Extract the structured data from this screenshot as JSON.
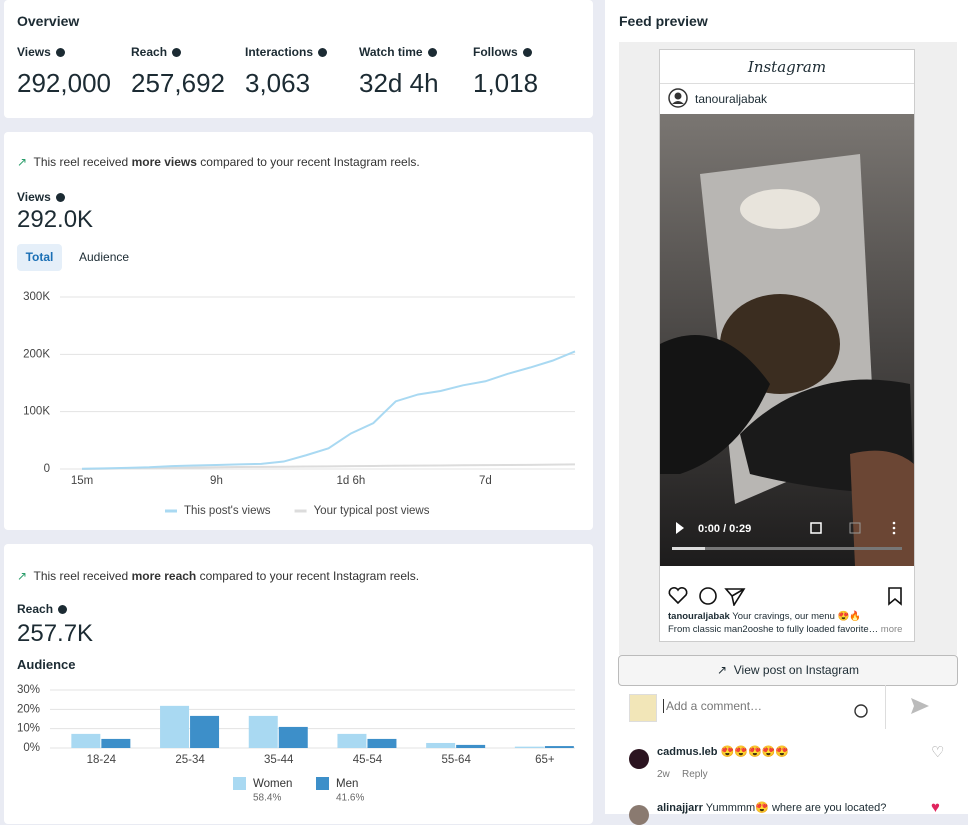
{
  "overview": {
    "title": "Overview",
    "metrics": [
      {
        "label": "Views",
        "value": "292,000"
      },
      {
        "label": "Reach",
        "value": "257,692"
      },
      {
        "label": "Interactions",
        "value": "3,063"
      },
      {
        "label": "Watch time",
        "value": "32d 4h"
      },
      {
        "label": "Follows",
        "value": "1,018"
      }
    ]
  },
  "views_card": {
    "note": [
      "This reel received ",
      "more views",
      " compared to your recent Instagram reels."
    ],
    "label": "Views",
    "value": "292.0K",
    "tabs": [
      "Total",
      "Audience"
    ]
  },
  "reach_card": {
    "note": [
      "This reel received ",
      "more reach",
      " compared to your recent Instagram reels."
    ],
    "label": "Reach",
    "value": "257.7K",
    "section": "Audience"
  },
  "chart_data": [
    {
      "type": "line",
      "categories": [
        "15m",
        null,
        null,
        null,
        null,
        null,
        "9h",
        null,
        null,
        null,
        null,
        null,
        "1d 6h",
        null,
        null,
        null,
        null,
        null,
        "7d",
        null,
        null,
        null,
        null
      ],
      "series": [
        {
          "name": "This post's views",
          "color": "#a9d9f2",
          "values": [
            500,
            1000,
            2000,
            3000,
            5000,
            6000,
            7000,
            8000,
            9000,
            13000,
            24000,
            36000,
            62000,
            80000,
            118000,
            130000,
            136000,
            146000,
            153000,
            166000,
            177000,
            189000,
            205000
          ]
        },
        {
          "name": "Your typical post views",
          "color": "#dcdcdc",
          "values": [
            0,
            500,
            1000,
            1500,
            2000,
            2500,
            3000,
            3500,
            3800,
            4000,
            4300,
            4600,
            5000,
            5300,
            5600,
            5900,
            6200,
            6500,
            6800,
            7000,
            7300,
            7600,
            8000
          ]
        }
      ],
      "ylim": [
        0,
        300000
      ],
      "yticks": [
        0,
        {
          "value": 100000,
          "label": "100K"
        },
        {
          "value": 200000,
          "label": "200K"
        },
        {
          "value": 300000,
          "label": "300K"
        }
      ],
      "grid": true
    },
    {
      "type": "bar",
      "categories": [
        "18-24",
        "25-34",
        "35-44",
        "45-54",
        "55-64",
        "65+"
      ],
      "series": [
        {
          "name": "Women",
          "share": "58.4%",
          "color": "#a9d9f2",
          "values": [
            7.3,
            21.8,
            16.6,
            7.3,
            2.6,
            0.7
          ]
        },
        {
          "name": "Men",
          "share": "41.6%",
          "color": "#3d8fc9",
          "values": [
            4.7,
            16.6,
            10.9,
            4.7,
            1.6,
            1.0
          ]
        }
      ],
      "ylim": [
        0,
        30
      ],
      "yticks": [
        {
          "value": 0,
          "label": "0%"
        },
        {
          "value": 10,
          "label": "10%"
        },
        {
          "value": 20,
          "label": "20%"
        },
        {
          "value": 30,
          "label": "30%"
        }
      ],
      "grid": true
    }
  ],
  "feed": {
    "title": "Feed preview",
    "logo": "Instagram",
    "username": "tanouraljabak",
    "time": "0:00 / 0:29",
    "caption_user": "tanouraljabak",
    "caption": "Your cravings, our menu 😍🔥",
    "caption_line2": "From classic man2ooshe to fully loaded favorite…",
    "more": "more",
    "button": "View post on Instagram",
    "comment_placeholder": "Add a comment…",
    "comments": [
      {
        "user": "cadmus.leb",
        "text": "😍😍😍😍😍",
        "age": "2w",
        "reply": "Reply"
      },
      {
        "user": "alinajjarr",
        "text": "Yummmm😍 where are you located?"
      }
    ]
  }
}
